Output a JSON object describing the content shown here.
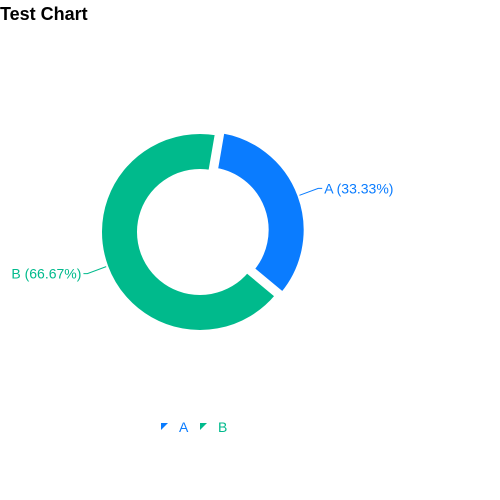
{
  "chart_data": {
    "type": "pie",
    "title": "Test Chart",
    "subtype": "donut",
    "slices": [
      {
        "label": "A",
        "value": 33.33,
        "display": "A (33.33%)",
        "color": "#0a7cff"
      },
      {
        "label": "B",
        "value": 66.67,
        "display": "B (66.67%)",
        "color": "#00ba8c"
      }
    ],
    "legend": {
      "placement": "bottom-center",
      "entries": [
        "A",
        "B"
      ]
    }
  }
}
